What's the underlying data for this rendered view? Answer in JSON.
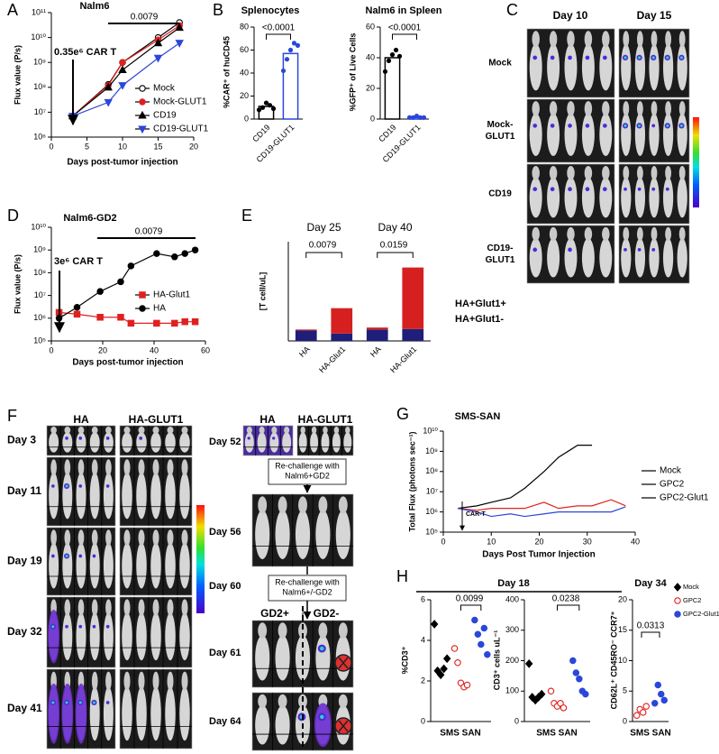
{
  "panel_letters": [
    "A",
    "B",
    "C",
    "D",
    "E",
    "F",
    "G",
    "H"
  ],
  "chart_data": [
    {
      "type": "line",
      "title": "Nalm6",
      "x_label": "Days post-tumor injection",
      "y_label": "Flux value (P/s)",
      "log_y": true,
      "xlim": [
        0,
        20
      ],
      "xticks": [
        0,
        5,
        10,
        15,
        20
      ],
      "ylim": [
        1000000.0,
        100000000000.0
      ],
      "yticks": [
        {
          "value": 1000000.0,
          "label": "10⁶"
        },
        {
          "value": 10000000.0,
          "label": "10⁷"
        },
        {
          "value": 100000000.0,
          "label": "10⁸"
        },
        {
          "value": 1000000000.0,
          "label": "10⁹"
        },
        {
          "value": 10000000000.0,
          "label": "10¹⁰"
        },
        {
          "value": 100000000000.0,
          "label": "10¹¹"
        }
      ],
      "x": [
        3,
        8,
        10,
        15,
        18
      ],
      "series": [
        {
          "name": "Mock",
          "color": "#000000",
          "marker": "circle-open",
          "values": [
            7000000.0,
            130000000.0,
            1000000000.0,
            10000000000.0,
            40000000000.0
          ]
        },
        {
          "name": "Mock-GLUT1",
          "color": "#e02020",
          "marker": "circle",
          "values": [
            7000000.0,
            120000000.0,
            1000000000.0,
            8000000000.0,
            30000000000.0
          ]
        },
        {
          "name": "CD19",
          "color": "#000000",
          "marker": "triangle",
          "values": [
            7000000.0,
            100000000.0,
            500000000.0,
            6000000000.0,
            25000000000.0
          ]
        },
        {
          "name": "CD19-GLUT1",
          "color": "#2b47d9",
          "marker": "triangle-down",
          "values": [
            7000000.0,
            25000000.0,
            120000000.0,
            1500000000.0,
            6000000000.0
          ]
        }
      ],
      "legend": "lower right",
      "annotations": [
        "0.35e⁶ CAR T",
        "0.0079"
      ]
    },
    {
      "type": "bar",
      "title": "Splenocytes",
      "y_label": "%CAR⁺ of huCD45",
      "categories": [
        "CD19",
        "CD19-GLUT1"
      ],
      "values": [
        11,
        57
      ],
      "colors": [
        "#000000",
        "#2b47d9"
      ],
      "points": [
        [
          8,
          10,
          14,
          12,
          9
        ],
        [
          42,
          52,
          60,
          66,
          64
        ]
      ],
      "ylim": [
        0,
        80
      ],
      "yticks": [
        0,
        20,
        40,
        60,
        80
      ],
      "annotations": [
        "<0.0001"
      ]
    },
    {
      "type": "bar",
      "title": "Nalm6 in Spleen",
      "y_label": "%GFP⁺ of Live Cells",
      "categories": [
        "CD19",
        "CD19-GLUT1"
      ],
      "values": [
        40,
        1
      ],
      "colors": [
        "#000000",
        "#2b47d9"
      ],
      "points": [
        [
          31,
          38,
          42,
          45,
          41
        ],
        [
          1,
          1,
          2,
          1,
          1
        ]
      ],
      "ylim": [
        0,
        60
      ],
      "yticks": [
        0,
        20,
        40,
        60
      ],
      "annotations": [
        "<0.0001"
      ]
    },
    {
      "type": "line",
      "title": "Nalm6-GD2",
      "x_label": "Days post-tumor injection",
      "y_label": "Flux value (P/s)",
      "log_y": true,
      "xlim": [
        0,
        60
      ],
      "xticks": [
        0,
        20,
        40,
        60
      ],
      "ylim": [
        100000.0,
        10000000000.0
      ],
      "yticks": [
        {
          "value": 100000.0,
          "label": "10⁵"
        },
        {
          "value": 1000000.0,
          "label": "10⁶"
        },
        {
          "value": 10000000.0,
          "label": "10⁷"
        },
        {
          "value": 100000000.0,
          "label": "10⁸"
        },
        {
          "value": 1000000000.0,
          "label": "10⁹"
        },
        {
          "value": 10000000000.0,
          "label": "10¹⁰"
        }
      ],
      "x": [
        3,
        10,
        19,
        27,
        31,
        41,
        48,
        52,
        56
      ],
      "series": [
        {
          "name": "HA-Glut1",
          "color": "#e02020",
          "marker": "square",
          "values": [
            1800000.0,
            1500000.0,
            1100000.0,
            1100000.0,
            600000.0,
            600000.0,
            600000.0,
            700000.0,
            700000.0
          ]
        },
        {
          "name": "HA",
          "color": "#000000",
          "marker": "circle",
          "values": [
            1000000.0,
            3000000.0,
            15000000.0,
            40000000.0,
            200000000.0,
            700000000.0,
            500000000.0,
            700000000.0,
            1000000000.0
          ]
        }
      ],
      "legend": "center right",
      "annotations": [
        "3e⁶ CAR T",
        "0.0079"
      ]
    },
    {
      "type": "stacked-bar",
      "y_label": "[T cell/uL]",
      "categories": [
        "HA",
        "HA-Glut1",
        "HA",
        "HA-Glut1"
      ],
      "group_labels": [
        "Day 25",
        "Day 40"
      ],
      "series": [
        {
          "name": "HA+Glut1-",
          "color": "#1f1f7a",
          "values": [
            105,
            75,
            115,
            120
          ]
        },
        {
          "name": "HA+Glut1+",
          "color": "#d62020",
          "values": [
            10,
            255,
            20,
            620
          ]
        }
      ],
      "ylim": [
        0,
        1000
      ],
      "legend": "right",
      "annotations": [
        "0.0079",
        "0.0159"
      ]
    },
    {
      "type": "line",
      "title": "SMS-SAN",
      "x_label": "Days Post Tumor Injection",
      "y_label": "Total Flux (photons sec⁻¹)",
      "log_y": true,
      "xlim": [
        0,
        40
      ],
      "xticks": [
        0,
        10,
        20,
        30,
        40
      ],
      "ylim": [
        100000.0,
        10000000000.0
      ],
      "yticks": [
        {
          "value": 100000.0,
          "label": "10⁵"
        },
        {
          "value": 1000000.0,
          "label": "10⁶"
        },
        {
          "value": 10000000.0,
          "label": "10⁷"
        },
        {
          "value": 100000000.0,
          "label": "10⁸"
        },
        {
          "value": 1000000000.0,
          "label": "10⁹"
        },
        {
          "value": 10000000000.0,
          "label": "10¹⁰"
        }
      ],
      "series": [
        {
          "name": "Mock",
          "color": "#000000",
          "marker": "none",
          "x": [
            3,
            7,
            10,
            14,
            17,
            21,
            24,
            28,
            31
          ],
          "values": [
            1500000.0,
            2000000.0,
            3000000.0,
            5000000.0,
            15000000.0,
            100000000.0,
            500000000.0,
            2000000000.0,
            2000000000.0
          ]
        },
        {
          "name": "GPC2",
          "color": "#e02020",
          "marker": "none",
          "x": [
            3,
            7,
            10,
            14,
            17,
            21,
            24,
            28,
            31,
            35,
            38
          ],
          "values": [
            1500000.0,
            1200000.0,
            1500000.0,
            1500000.0,
            1500000.0,
            3000000.0,
            1500000.0,
            2000000.0,
            2000000.0,
            4000000.0,
            2000000.0
          ]
        },
        {
          "name": "GPC2-Glut1",
          "color": "#2b47d9",
          "marker": "none",
          "x": [
            3,
            7,
            10,
            14,
            17,
            21,
            24,
            28,
            31,
            35,
            38
          ],
          "values": [
            1500000.0,
            1000000.0,
            600000.0,
            800000.0,
            600000.0,
            800000.0,
            1000000.0,
            1000000.0,
            1000000.0,
            1000000.0,
            1800000.0
          ]
        }
      ],
      "legend": "outside right",
      "annotations": [
        "CAR-T"
      ]
    },
    {
      "type": "strip",
      "title": "Day 18",
      "x_label": "SMS SAN",
      "y_label": "%CD3⁺",
      "series": [
        {
          "name": "Mock",
          "color": "#000000",
          "marker": "diamond",
          "values": [
            4.8,
            2.5,
            2.3,
            2.6,
            3.1
          ]
        },
        {
          "name": "GPC2",
          "color": "#e02020",
          "marker": "circle-open",
          "values": [
            3.6,
            2.9,
            1.9,
            1.7,
            1.8
          ]
        },
        {
          "name": "GPC2-Glut1",
          "color": "#2b47d9",
          "marker": "circle",
          "values": [
            5.0,
            4.3,
            3.8,
            4.6,
            3.3
          ]
        }
      ],
      "ylim": [
        0,
        6
      ],
      "yticks": [
        0,
        2,
        4,
        6
      ],
      "legend": "outside right",
      "annotations": [
        "0.0099"
      ]
    },
    {
      "type": "strip",
      "x_label": "SMS SAN",
      "y_label": "CD3⁺ cells uL⁻¹",
      "series": [
        {
          "name": "Mock",
          "color": "#000000",
          "marker": "diamond",
          "values": [
            190,
            80,
            70,
            80,
            90
          ]
        },
        {
          "name": "GPC2",
          "color": "#e02020",
          "marker": "circle-open",
          "values": [
            100,
            60,
            50,
            60,
            45
          ]
        },
        {
          "name": "GPC2-Glut1",
          "color": "#2b47d9",
          "marker": "circle",
          "values": [
            200,
            160,
            140,
            100,
            90
          ]
        }
      ],
      "ylim": [
        0,
        400
      ],
      "yticks": [
        0,
        100,
        200,
        300,
        400
      ],
      "annotations": [
        "0.0238"
      ]
    },
    {
      "type": "strip",
      "title": "Day 34",
      "x_label": "SMS SAN",
      "y_label": "CD62L⁺ CD45RO⁻ CCR7⁺",
      "series": [
        {
          "name": "GPC2",
          "color": "#e02020",
          "marker": "circle-open",
          "values": [
            1,
            2,
            1.5,
            2.5
          ]
        },
        {
          "name": "GPC2-Glut1",
          "color": "#2b47d9",
          "marker": "circle",
          "values": [
            3,
            6,
            4.5,
            3.5
          ]
        }
      ],
      "ylim": [
        0,
        20
      ],
      "yticks": [
        0,
        5,
        10,
        15,
        20
      ],
      "annotations": [
        "0.0313"
      ]
    }
  ],
  "panel_c": {
    "columns": [
      "Day 10",
      "Day 15"
    ],
    "rows": [
      [
        "Mock"
      ],
      [
        "Mock-",
        "GLUT1"
      ],
      [
        "CD19"
      ],
      [
        "CD19-",
        "GLUT1"
      ]
    ]
  },
  "panel_f": {
    "columns": [
      "HA",
      "HA-GLUT1"
    ],
    "rows": [
      "Day 3",
      "Day 11",
      "Day 19",
      "Day 32",
      "Day 41"
    ],
    "right_columns": [
      "HA",
      "HA-GLUT1"
    ],
    "right_rows": [
      "Day 52",
      "Day 56",
      "Day 60",
      "Day 61",
      "Day 64"
    ],
    "steps": [
      [
        "Re-challenge with",
        "Nalm6+GD2"
      ],
      [
        "Re-challenge with",
        "Nalm6+/-GD2"
      ]
    ],
    "groups": [
      "GD2+",
      "GD2-"
    ]
  }
}
